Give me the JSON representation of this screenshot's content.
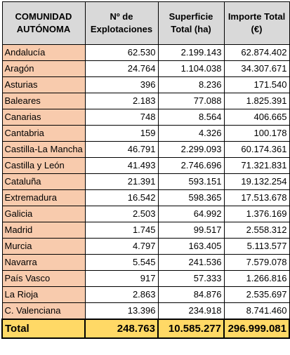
{
  "table": {
    "headers": [
      [
        "COMUNIDAD",
        "AUTÓNOMA"
      ],
      [
        "Nº de",
        "Explotaciones"
      ],
      [
        "Superficie",
        "Total (ha)"
      ],
      [
        "Importe Total",
        "(€)"
      ]
    ],
    "rows": [
      [
        "Andalucía",
        "62.530",
        "2.199.143",
        "62.874.402"
      ],
      [
        "Aragón",
        "24.764",
        "1.104.038",
        "34.307.671"
      ],
      [
        "Asturias",
        "396",
        "8.236",
        "171.540"
      ],
      [
        "Baleares",
        "2.183",
        "77.088",
        "1.825.391"
      ],
      [
        "Canarias",
        "748",
        "8.564",
        "406.665"
      ],
      [
        "Cantabria",
        "159",
        "4.326",
        "100.178"
      ],
      [
        "Castilla-La Mancha",
        "46.791",
        "2.299.093",
        "60.174.361"
      ],
      [
        "Castilla y León",
        "41.493",
        "2.746.696",
        "71.321.831"
      ],
      [
        "Cataluña",
        "21.391",
        "593.151",
        "19.132.254"
      ],
      [
        "Extremadura",
        "16.542",
        "598.365",
        "17.513.678"
      ],
      [
        "Galicia",
        "2.503",
        "64.992",
        "1.376.169"
      ],
      [
        "Madrid",
        "1.745",
        "99.517",
        "2.558.312"
      ],
      [
        "Murcia",
        "4.797",
        "163.405",
        "5.113.577"
      ],
      [
        "Navarra",
        "5.545",
        "241.536",
        "7.579.078"
      ],
      [
        "País Vasco",
        "917",
        "57.333",
        "1.266.816"
      ],
      [
        "La Rioja",
        "2.863",
        "84.876",
        "2.535.697"
      ],
      [
        "C. Valenciana",
        "13.396",
        "234.918",
        "8.741.460"
      ]
    ],
    "total": [
      "Total",
      "248.763",
      "10.585.277",
      "296.999.081"
    ]
  },
  "colors": {
    "header_bg": "#d9d9d9",
    "region_bg": "#f8cbad",
    "total_bg": "#ffd966"
  }
}
